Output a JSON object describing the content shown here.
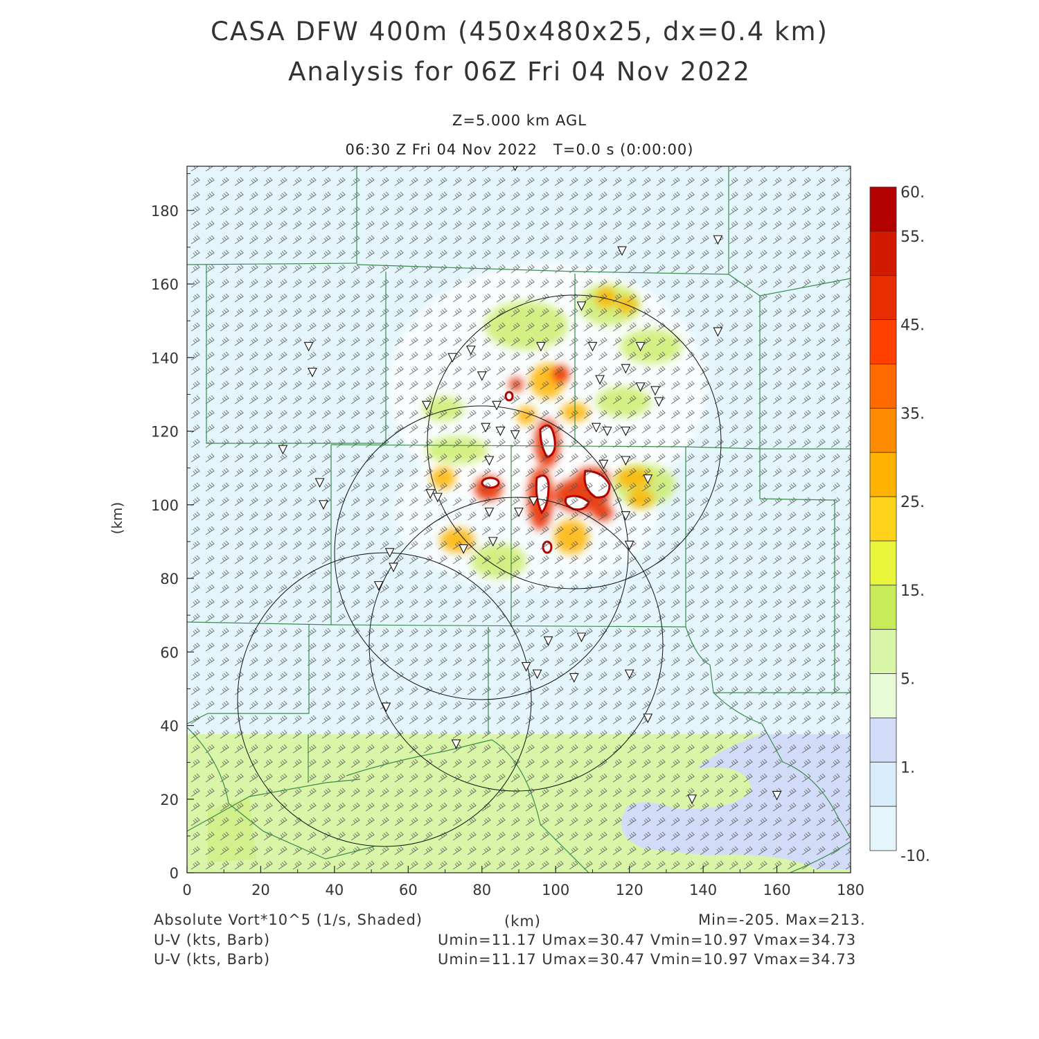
{
  "header": {
    "title_line1": "CASA DFW 400m (450x480x25, dx=0.4 km)",
    "title_line2": "Analysis for 06Z Fri 04 Nov 2022",
    "level": "Z=5.000 km AGL",
    "valid_time": "06:30 Z Fri 04 Nov 2022",
    "forecast_time": "T=0.0 s (0:00:00)"
  },
  "axes": {
    "x_label": "(km)",
    "y_label": "(km)",
    "x_range": [
      0,
      180
    ],
    "y_range": [
      0,
      192
    ],
    "x_ticks": [
      "0",
      "20",
      "40",
      "60",
      "80",
      "100",
      "120",
      "140",
      "160",
      "180"
    ],
    "y_ticks": [
      "0",
      "20",
      "40",
      "60",
      "80",
      "100",
      "120",
      "140",
      "160",
      "180"
    ]
  },
  "colorbar": {
    "labels": [
      "60.",
      "55.",
      "45.",
      "35.",
      "25.",
      "15.",
      "5.",
      "1.",
      "-10."
    ],
    "colors": [
      "#b30000",
      "#d21a00",
      "#e82e00",
      "#ff4000",
      "#ff6a00",
      "#ff8c00",
      "#ffb300",
      "#ffd21c",
      "#e8f53a",
      "#c8eb5a",
      "#d8f5a8",
      "#e6fbd6",
      "#d2dcf8",
      "#d8ecfb",
      "#e4f6fc"
    ]
  },
  "footer": {
    "field_label": "Absolute Vort*10^5 (1/s, Shaded)",
    "axis_unit": "(km)",
    "min_max": "Min=-205. Max=213.",
    "barb1_label": "U-V (kts, Barb)",
    "barb1_stats": "Umin=11.17 Umax=30.47 Vmin=10.97 Vmax=34.73",
    "barb2_label": "U-V (kts, Barb)",
    "barb2_stats": "Umin=11.17 Umax=30.47 Vmin=10.97 Vmax=34.73"
  },
  "chart_data": {
    "type": "heatmap",
    "field": "Absolute Vort*10^5 (1/s)",
    "min": -205,
    "max": 213,
    "u_range_kts": [
      11.17,
      30.47
    ],
    "v_range_kts": [
      10.97,
      34.73
    ],
    "radar_rings_km": [
      {
        "cx": 100,
        "cy": 116,
        "r": 40
      },
      {
        "cx": 80,
        "cy": 86,
        "r": 40
      },
      {
        "cx": 87,
        "cy": 63,
        "r": 40
      },
      {
        "cx": 52,
        "cy": 48,
        "r": 40
      }
    ],
    "stations_km": [
      [
        89,
        192
      ],
      [
        118,
        169
      ],
      [
        144,
        172
      ],
      [
        33,
        143
      ],
      [
        34,
        136
      ],
      [
        72,
        140
      ],
      [
        77,
        142
      ],
      [
        110,
        143
      ],
      [
        123,
        143
      ],
      [
        144,
        147
      ],
      [
        107,
        154
      ],
      [
        119,
        137
      ],
      [
        96,
        143
      ],
      [
        80,
        135
      ],
      [
        112,
        134
      ],
      [
        123,
        132
      ],
      [
        127,
        131
      ],
      [
        128,
        128
      ],
      [
        65,
        127
      ],
      [
        84,
        127
      ],
      [
        81,
        121
      ],
      [
        85,
        120
      ],
      [
        89,
        119
      ],
      [
        111,
        121
      ],
      [
        114,
        120
      ],
      [
        119,
        120
      ],
      [
        26,
        115
      ],
      [
        82,
        112
      ],
      [
        113,
        111
      ],
      [
        119,
        112
      ],
      [
        125,
        107
      ],
      [
        36,
        106
      ],
      [
        37,
        100
      ],
      [
        66,
        103
      ],
      [
        68,
        102
      ],
      [
        82,
        98
      ],
      [
        90,
        98
      ],
      [
        94,
        101
      ],
      [
        119,
        97
      ],
      [
        120,
        89
      ],
      [
        75,
        88
      ],
      [
        83,
        90
      ],
      [
        55,
        87
      ],
      [
        56,
        83
      ],
      [
        52,
        78
      ],
      [
        98,
        63
      ],
      [
        92,
        56
      ],
      [
        95,
        54
      ],
      [
        105,
        53
      ],
      [
        120,
        54
      ],
      [
        107,
        64
      ],
      [
        54,
        45
      ],
      [
        125,
        42
      ],
      [
        73,
        35
      ],
      [
        137,
        20
      ],
      [
        160,
        21
      ]
    ],
    "shading_zones": [
      {
        "level": "-10. to 1.",
        "region": "most of domain"
      },
      {
        "level": "5.",
        "region": "southern band y < 40 km"
      },
      {
        "level": "1.",
        "region": "southeast patch near x 120-180, y 5-38 km"
      },
      {
        "level": "25. to 60.",
        "region": "convective cluster near x 70-125, y 80-160 km"
      }
    ]
  }
}
